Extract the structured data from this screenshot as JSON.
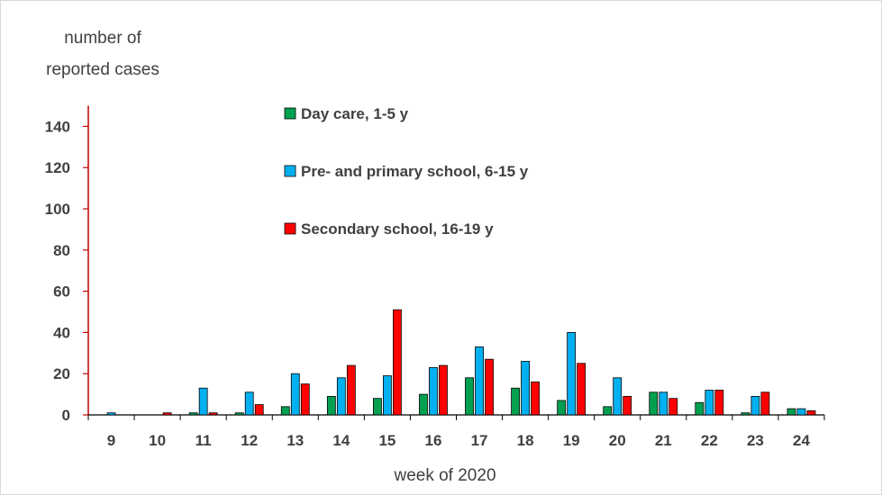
{
  "chart_data": {
    "type": "bar",
    "ylabel_lines": [
      "number of",
      "reported cases"
    ],
    "xlabel": "week of 2020",
    "categories": [
      "9",
      "10",
      "11",
      "12",
      "13",
      "14",
      "15",
      "16",
      "17",
      "18",
      "19",
      "20",
      "21",
      "22",
      "23",
      "24"
    ],
    "series": [
      {
        "name": "Day care, 1-5 y",
        "color": "#00a050",
        "values": [
          0,
          0,
          1,
          1,
          4,
          9,
          8,
          10,
          18,
          13,
          7,
          4,
          11,
          6,
          1,
          3
        ]
      },
      {
        "name": "Pre- and primary school, 6-15 y",
        "color": "#00b0f0",
        "values": [
          1,
          0,
          13,
          11,
          20,
          18,
          19,
          23,
          33,
          26,
          40,
          18,
          11,
          12,
          9,
          3
        ]
      },
      {
        "name": "Secondary school, 16-19 y",
        "color": "#ff0000",
        "values": [
          0,
          1,
          1,
          5,
          15,
          24,
          51,
          24,
          27,
          16,
          25,
          9,
          8,
          12,
          11,
          2
        ]
      }
    ],
    "ylim": [
      0,
      150
    ],
    "yticks": [
      0,
      20,
      40,
      60,
      80,
      100,
      120,
      140
    ],
    "y_axis_color": "#c00000",
    "grid": false,
    "legend_position": "top-center"
  }
}
